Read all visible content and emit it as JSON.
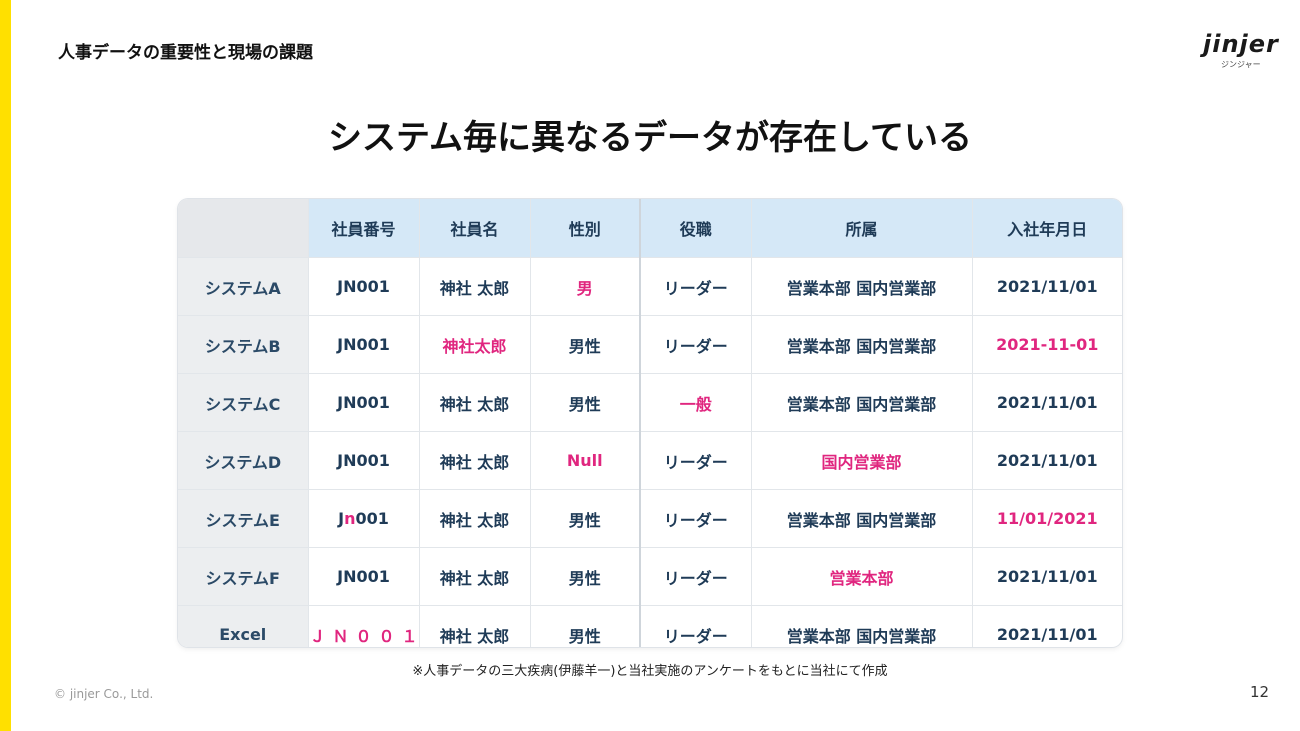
{
  "header": {
    "section_title": "人事データの重要性と現場の課題",
    "logo_text": "jinjer",
    "logo_subtext": "ジンジャー",
    "main_title": "システム毎に異なるデータが存在している"
  },
  "table": {
    "columns": [
      "",
      "社員番号",
      "社員名",
      "性別",
      "役職",
      "所属",
      "入社年月日"
    ],
    "rows": [
      {
        "label": "システムA",
        "cells": [
          {
            "text": "JN001"
          },
          {
            "text": "神社 太郎"
          },
          {
            "text": "男",
            "highlight": true
          },
          {
            "text": "リーダー"
          },
          {
            "text": "営業本部 国内営業部"
          },
          {
            "text": "2021/11/01"
          }
        ]
      },
      {
        "label": "システムB",
        "cells": [
          {
            "text": "JN001"
          },
          {
            "text": "神社太郎",
            "highlight": true
          },
          {
            "text": "男性"
          },
          {
            "text": "リーダー"
          },
          {
            "text": "営業本部 国内営業部"
          },
          {
            "text": "2021-11-01",
            "highlight": true
          }
        ]
      },
      {
        "label": "システムC",
        "cells": [
          {
            "text": "JN001"
          },
          {
            "text": "神社 太郎"
          },
          {
            "text": "男性"
          },
          {
            "text": "一般",
            "highlight": true
          },
          {
            "text": "営業本部 国内営業部"
          },
          {
            "text": "2021/11/01"
          }
        ]
      },
      {
        "label": "システムD",
        "cells": [
          {
            "text": "JN001"
          },
          {
            "text": "神社 太郎"
          },
          {
            "text": "Null",
            "highlight": true
          },
          {
            "text": "リーダー"
          },
          {
            "text": "国内営業部",
            "highlight": true
          },
          {
            "text": "2021/11/01"
          }
        ]
      },
      {
        "label": "システムE",
        "cells": [
          {
            "text": "Jn001",
            "partial": {
              "pre": "J",
              "mid": "n",
              "post": "001"
            }
          },
          {
            "text": "神社 太郎"
          },
          {
            "text": "男性"
          },
          {
            "text": "リーダー"
          },
          {
            "text": "営業本部 国内営業部"
          },
          {
            "text": "11/01/2021",
            "highlight": true
          }
        ]
      },
      {
        "label": "システムF",
        "cells": [
          {
            "text": "JN001"
          },
          {
            "text": "神社 太郎"
          },
          {
            "text": "男性"
          },
          {
            "text": "リーダー"
          },
          {
            "text": "営業本部",
            "highlight": true
          },
          {
            "text": "2021/11/01"
          }
        ]
      },
      {
        "label": "Excel",
        "cells": [
          {
            "text": "ＪＮ００１",
            "highlight": true,
            "mono": true
          },
          {
            "text": "神社 太郎"
          },
          {
            "text": "男性"
          },
          {
            "text": "リーダー"
          },
          {
            "text": "営業本部 国内営業部"
          },
          {
            "text": "2021/11/01"
          }
        ]
      }
    ]
  },
  "footer": {
    "footnote": "※人事データの三大疾病(伊藤羊一)と当社実施のアンケートをもとに当社にて作成",
    "copyright": "© jinjer Co., Ltd.",
    "page_number": "12"
  },
  "colors": {
    "accent": "#FFE000",
    "highlight": "#E0267F",
    "header_bg": "#D5E8F7",
    "text_navy": "#1F3B57"
  }
}
